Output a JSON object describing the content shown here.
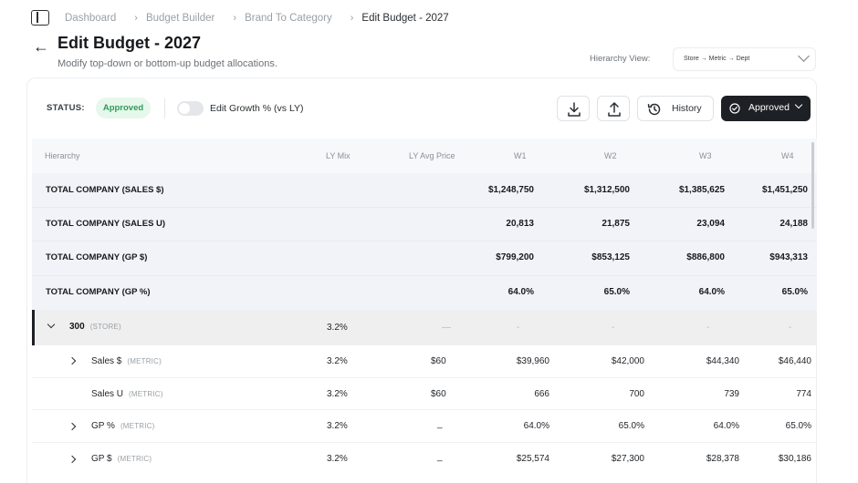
{
  "breadcrumb": {
    "items": [
      "Dashboard",
      "Budget Builder",
      "Brand To Category",
      "Edit Budget - 2027"
    ]
  },
  "page": {
    "title": "Edit Budget - 2027",
    "subtitle": "Modify top-down or bottom-up budget allocations."
  },
  "hierarchy_view": {
    "label": "Hierarchy View:",
    "selected": "Store → Metric → Dept"
  },
  "toolbar": {
    "status_label": "STATUS:",
    "status_badge": "Approved",
    "status_color": "#2e9b58",
    "toggle_label": "Edit Growth % (vs LY)",
    "toggle_on": false,
    "download_icon": "download-icon",
    "upload_icon": "upload-icon",
    "history_label": "History",
    "approved_label": "Approved"
  },
  "table": {
    "columns": [
      "Hierarchy",
      "LY Mix",
      "LY Avg Price",
      "W1",
      "W2",
      "W3",
      "W4"
    ],
    "total_rows": [
      {
        "label": "TOTAL COMPANY (SALES $)",
        "w1": "$1,248,750",
        "w2": "$1,312,500",
        "w3": "$1,385,625",
        "w4": "$1,451,250"
      },
      {
        "label": "TOTAL COMPANY (SALES U)",
        "w1": "20,813",
        "w2": "21,875",
        "w3": "23,094",
        "w4": "24,188"
      },
      {
        "label": "TOTAL COMPANY (GP $)",
        "w1": "$799,200",
        "w2": "$853,125",
        "w3": "$886,800",
        "w4": "$943,313"
      },
      {
        "label": "TOTAL COMPANY (GP %)",
        "w1": "64.0%",
        "w2": "65.0%",
        "w3": "64.0%",
        "w4": "65.0%"
      }
    ],
    "store_row": {
      "label": "300",
      "tag": "(STORE)",
      "ly_mix": "3.2%",
      "ly_avg_price": "—",
      "w1": "-",
      "w2": "-",
      "w3": "-",
      "w4": "-"
    },
    "metric_rows": [
      {
        "label": "Sales $",
        "tag": "(METRIC)",
        "expandable": true,
        "ly_mix": "3.2%",
        "ly_avg_price": "$60",
        "w1": "$39,960",
        "w2": "$42,000",
        "w3": "$44,340",
        "w4": "$46,440"
      },
      {
        "label": "Sales U",
        "tag": "(METRIC)",
        "expandable": false,
        "ly_mix": "3.2%",
        "ly_avg_price": "$60",
        "w1": "666",
        "w2": "700",
        "w3": "739",
        "w4": "774"
      },
      {
        "label": "GP %",
        "tag": "(METRIC)",
        "expandable": true,
        "ly_mix": "3.2%",
        "ly_avg_price": "_",
        "w1": "64.0%",
        "w2": "65.0%",
        "w3": "64.0%",
        "w4": "65.0%"
      },
      {
        "label": "GP $",
        "tag": "(METRIC)",
        "expandable": true,
        "ly_mix": "3.2%",
        "ly_avg_price": "_",
        "w1": "$25,574",
        "w2": "$27,300",
        "w3": "$28,378",
        "w4": "$30,186"
      }
    ]
  }
}
